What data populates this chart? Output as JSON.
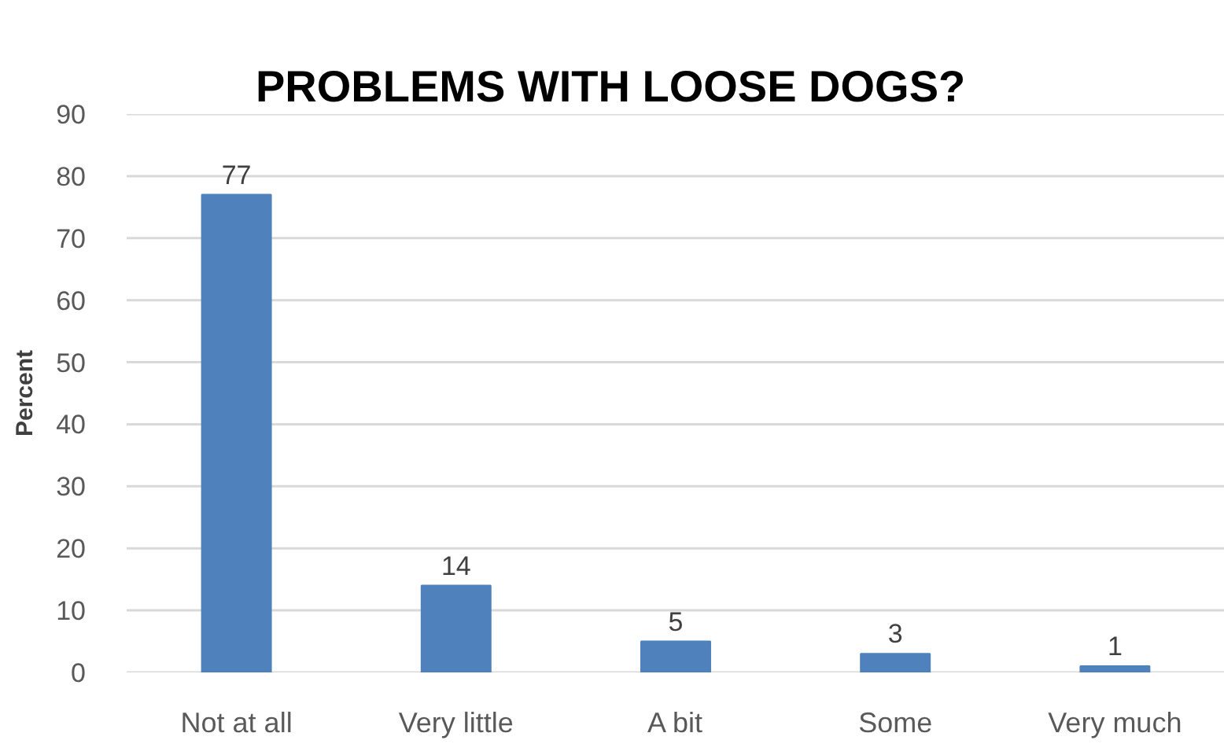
{
  "chart_data": {
    "type": "bar",
    "title": "PROBLEMS WITH LOOSE DOGS?",
    "ylabel": "Percent",
    "categories": [
      "Not at all",
      "Very little",
      "A bit",
      "Some",
      "Very much"
    ],
    "values": [
      77,
      14,
      5,
      3,
      1
    ],
    "color": "#4f81bd",
    "ylim": [
      0,
      90
    ],
    "yticks": [
      0,
      10,
      20,
      30,
      40,
      50,
      60,
      70,
      80,
      90
    ],
    "grid": "y",
    "data_labels": true
  }
}
